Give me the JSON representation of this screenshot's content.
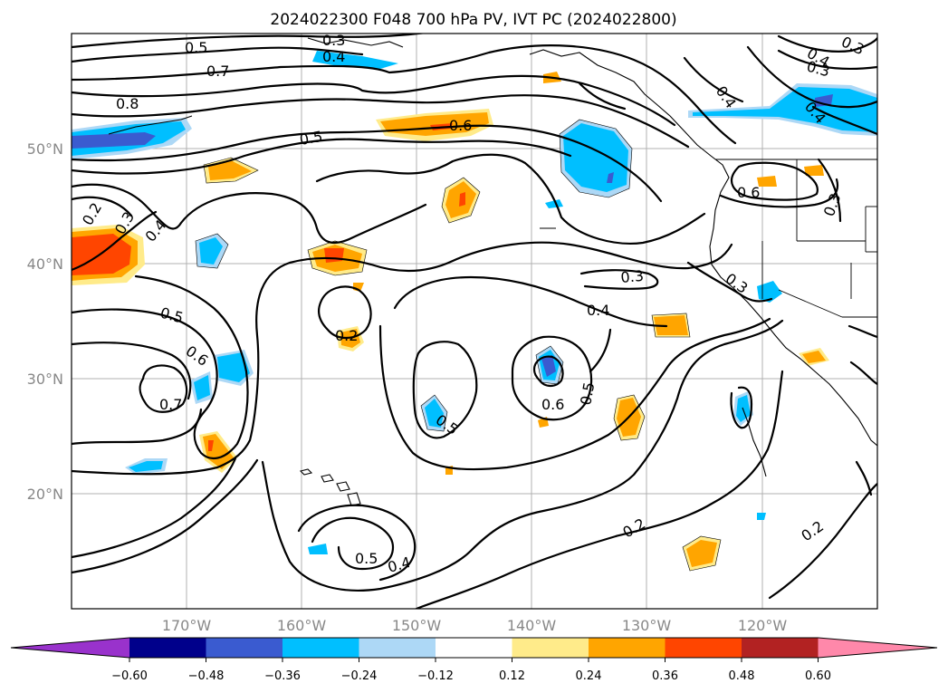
{
  "chart_data": {
    "type": "contour-map",
    "title": "2024022300 F048 700 hPa PV, IVT PC (2024022800)",
    "projection": "PlateCarree",
    "lon_range": [
      -180,
      -110
    ],
    "lat_range": [
      10,
      60
    ],
    "lat_ticks": [
      "20°N",
      "30°N",
      "40°N",
      "50°N"
    ],
    "lon_ticks": [
      "170°W",
      "160°W",
      "150°W",
      "140°W",
      "130°W",
      "120°W"
    ],
    "grid": true,
    "colorbar": {
      "orientation": "horizontal",
      "extend": "both",
      "levels": [
        -0.6,
        -0.48,
        -0.36,
        -0.24,
        -0.12,
        0.12,
        0.24,
        0.36,
        0.48,
        0.6
      ],
      "tick_labels": [
        "−0.60",
        "−0.48",
        "−0.36",
        "−0.24",
        "−0.12",
        "0.12",
        "0.24",
        "0.36",
        "0.48",
        "0.60"
      ],
      "colors": [
        "#9932cc",
        "#00008b",
        "#3a5bd0",
        "#00bfff",
        "#add8f6",
        "#ffffff",
        "#ffeb8a",
        "#ffa500",
        "#ff4500",
        "#b22222",
        "#ff88aa"
      ]
    },
    "contour_labels": [
      "0.5",
      "0.7",
      "0.8",
      "0.3",
      "0.4",
      "0.5",
      "0.6",
      "0.4",
      "0.3",
      "0.2",
      "0.3",
      "0.4",
      "0.5",
      "0.6",
      "0.7",
      "0.2",
      "0.3",
      "0.4",
      "0.6",
      "0.5",
      "0.5",
      "0.6",
      "0.2",
      "0.5",
      "0.4",
      "0.2",
      "0.4",
      "0.3",
      "0.3",
      "0.3",
      "0.4"
    ]
  }
}
